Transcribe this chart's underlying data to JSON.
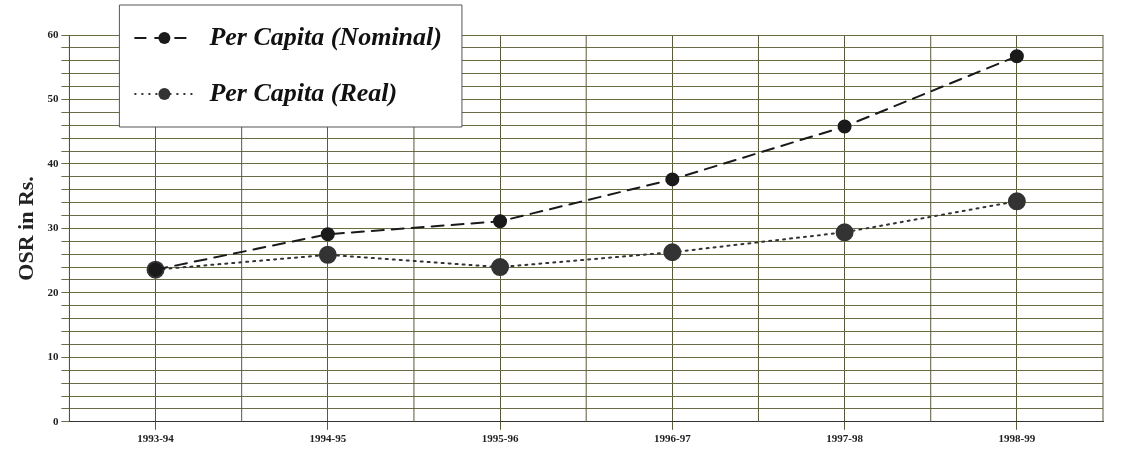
{
  "chart_data": {
    "type": "line",
    "ylabel": "OSR in Rs.",
    "categories": [
      "1993-94",
      "1994-95",
      "1995-96",
      "1996-97",
      "1997-98",
      "1998-99"
    ],
    "series": [
      {
        "name": "Per Capita (Nominal)",
        "color": "#1a1a1a",
        "line_style": "dashed",
        "values": [
          23.6,
          29.1,
          31.1,
          37.6,
          45.8,
          56.7
        ]
      },
      {
        "name": "Per Capita (Real)",
        "color": "#333333",
        "line_style": "dotted",
        "values": [
          23.6,
          25.9,
          24.0,
          26.3,
          29.4,
          34.2
        ]
      }
    ],
    "ylim": [
      0,
      60
    ],
    "yticks": [
      0,
      {
        "value": 2,
        "label": null
      },
      {
        "value": 4,
        "label": null
      },
      {
        "value": 6,
        "label": null
      },
      {
        "value": 8,
        "label": null
      },
      10,
      {
        "value": 12,
        "label": null
      },
      {
        "value": 14,
        "label": null
      },
      {
        "value": 16,
        "label": null
      },
      {
        "value": 18,
        "label": null
      },
      20,
      {
        "value": 22,
        "label": null
      },
      {
        "value": 24,
        "label": null
      },
      {
        "value": 26,
        "label": null
      },
      {
        "value": 28,
        "label": null
      },
      30,
      {
        "value": 32,
        "label": null
      },
      {
        "value": 34,
        "label": null
      },
      {
        "value": 36,
        "label": null
      },
      {
        "value": 38,
        "label": null
      },
      40,
      {
        "value": 42,
        "label": null
      },
      {
        "value": 44,
        "label": null
      },
      {
        "value": 46,
        "label": null
      },
      {
        "value": 48,
        "label": null
      },
      50,
      {
        "value": 52,
        "label": null
      },
      {
        "value": 54,
        "label": null
      },
      {
        "value": 56,
        "label": null
      },
      {
        "value": 58,
        "label": null
      },
      60
    ],
    "grid": true,
    "legend": "top left",
    "marker": "circle"
  }
}
